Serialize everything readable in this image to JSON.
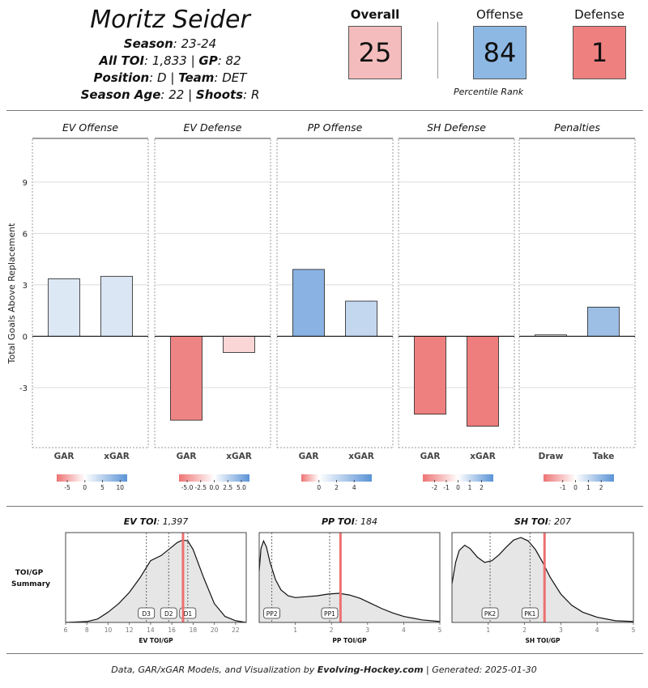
{
  "player": {
    "name": "Moritz Seider",
    "season_label": "Season",
    "season": "23-24",
    "toi_label": "All TOI",
    "toi": "1,833",
    "gp_label": "GP",
    "gp": "82",
    "position_label": "Position",
    "position": "D",
    "team_label": "Team",
    "team": "DET",
    "age_label": "Season Age",
    "age": "22",
    "shoots_label": "Shoots",
    "shoots": "R"
  },
  "ranks": {
    "overall_label": "Overall",
    "overall": "25",
    "overall_color": "#f4bcbc",
    "offense_label": "Offense",
    "offense": "84",
    "offense_color": "#8db8e3",
    "defense_label": "Defense",
    "defense": "1",
    "defense_color": "#ef8080",
    "note": "Percentile Rank"
  },
  "chart_data": [
    {
      "type": "bar",
      "title": "Total Goals Above Replacement by component",
      "ylabel": "Total Goals Above Replacement",
      "ylim": [
        -6.5,
        11.5
      ],
      "yticks": [
        9,
        6,
        3,
        0,
        -3
      ],
      "panels": [
        {
          "title": "EV Offense",
          "categories": [
            "GAR",
            "xGAR"
          ],
          "values": [
            3.35,
            3.5
          ],
          "colors": [
            "#dde8f5",
            "#dbe6f4"
          ],
          "scale": {
            "min": -8,
            "max": 12,
            "ticks": [
              -5,
              0,
              5,
              10
            ],
            "labels": [
              "-5",
              "0",
              "5",
              "10"
            ]
          }
        },
        {
          "title": "EV Defense",
          "categories": [
            "GAR",
            "xGAR"
          ],
          "values": [
            -4.9,
            -0.95
          ],
          "colors": [
            "#ef8484",
            "#fad6d6"
          ],
          "scale": {
            "min": -6.5,
            "max": 6.5,
            "ticks": [
              -5,
              -2.5,
              0,
              2.5,
              5
            ],
            "labels": [
              "-5.0",
              "-2.5",
              "0.0",
              "2.5",
              "5.0"
            ]
          }
        },
        {
          "title": "PP Offense",
          "categories": [
            "GAR",
            "xGAR"
          ],
          "values": [
            3.9,
            2.05
          ],
          "colors": [
            "#8ab2e2",
            "#c3d7ef"
          ],
          "scale": {
            "min": -2,
            "max": 6,
            "ticks": [
              0,
              2,
              4
            ],
            "labels": [
              "0",
              "2",
              "4"
            ]
          }
        },
        {
          "title": "SH Defense",
          "categories": [
            "GAR",
            "xGAR"
          ],
          "values": [
            -4.55,
            -5.25
          ],
          "colors": [
            "#ef8080",
            "#ee7d7d"
          ],
          "scale": {
            "min": -3,
            "max": 3,
            "ticks": [
              -2,
              -1,
              0,
              1,
              2
            ],
            "labels": [
              "-2",
              "-1",
              "0",
              "1",
              "2"
            ]
          }
        },
        {
          "title": "Penalties",
          "categories": [
            "Draw",
            "Take"
          ],
          "values": [
            0.08,
            1.7
          ],
          "colors": [
            "#f6f6f6",
            "#9dbfe6"
          ],
          "scale": {
            "min": -2.5,
            "max": 3,
            "ticks": [
              -1,
              0,
              1,
              2
            ],
            "labels": [
              "-1",
              "0",
              "1",
              "2"
            ]
          }
        }
      ]
    },
    {
      "type": "area",
      "row_label_1": "TOI/GP",
      "row_label_2": "Summary",
      "panels": [
        {
          "title_bold": "EV TOI",
          "title_value": "1,397",
          "xlabel": "EV TOI/GP",
          "xlim": [
            6,
            23
          ],
          "xticks": [
            6,
            8,
            10,
            12,
            14,
            16,
            18,
            20,
            22
          ],
          "xticklabels": [
            "6",
            "8",
            "10",
            "12",
            "14",
            "16",
            "18",
            "20",
            "22"
          ],
          "density_x": [
            6,
            8,
            9,
            10,
            11,
            12,
            13,
            14,
            15,
            16,
            16.5,
            17,
            17.5,
            18,
            19,
            20,
            21,
            22,
            23
          ],
          "density_y": [
            0,
            0.01,
            0.04,
            0.12,
            0.22,
            0.35,
            0.52,
            0.72,
            0.78,
            0.88,
            0.93,
            0.96,
            0.95,
            0.85,
            0.52,
            0.22,
            0.07,
            0.02,
            0
          ],
          "markers": [
            {
              "label": "D3",
              "x": 13.6
            },
            {
              "label": "D2",
              "x": 15.7
            },
            {
              "label": "D1",
              "x": 17.5
            }
          ],
          "player_value": 17.05
        },
        {
          "title_bold": "PP TOI",
          "title_value": "184",
          "xlabel": "PP TOI/GP",
          "xlim": [
            0,
            5
          ],
          "xticks": [
            1,
            2,
            3,
            4,
            5
          ],
          "xticklabels": [
            "1",
            "2",
            "3",
            "4",
            "5"
          ],
          "density_x": [
            0,
            0.05,
            0.12,
            0.2,
            0.3,
            0.45,
            0.6,
            0.8,
            1.0,
            1.3,
            1.6,
            1.9,
            2.2,
            2.5,
            2.8,
            3.1,
            3.4,
            3.7,
            4.0,
            4.5,
            5.0
          ],
          "density_y": [
            0.6,
            0.86,
            0.95,
            0.88,
            0.7,
            0.5,
            0.38,
            0.31,
            0.29,
            0.3,
            0.31,
            0.33,
            0.34,
            0.32,
            0.28,
            0.22,
            0.16,
            0.11,
            0.07,
            0.03,
            0.01
          ],
          "markers": [
            {
              "label": "PP2",
              "x": 0.35
            },
            {
              "label": "PP1",
              "x": 1.95
            }
          ],
          "player_value": 2.25
        },
        {
          "title_bold": "SH TOI",
          "title_value": "207",
          "xlabel": "SH TOI/GP",
          "xlim": [
            0,
            5
          ],
          "xticks": [
            1,
            2,
            3,
            4,
            5
          ],
          "xticklabels": [
            "1",
            "2",
            "3",
            "4",
            "5"
          ],
          "density_x": [
            0,
            0.1,
            0.2,
            0.35,
            0.5,
            0.7,
            0.9,
            1.1,
            1.3,
            1.5,
            1.7,
            1.9,
            2.1,
            2.3,
            2.5,
            2.7,
            3.0,
            3.3,
            3.6,
            4.0,
            4.5,
            5.0
          ],
          "density_y": [
            0.45,
            0.7,
            0.84,
            0.9,
            0.86,
            0.76,
            0.7,
            0.72,
            0.79,
            0.88,
            0.96,
            0.99,
            0.95,
            0.85,
            0.7,
            0.53,
            0.33,
            0.2,
            0.12,
            0.06,
            0.02,
            0.01
          ],
          "markers": [
            {
              "label": "PK2",
              "x": 1.05
            },
            {
              "label": "PK1",
              "x": 2.15
            }
          ],
          "player_value": 2.55
        }
      ]
    }
  ],
  "footer": {
    "prefix": "Data, GAR/xGAR Models, and Visualization by",
    "site": "Evolving-Hockey.com",
    "suffix": "| Generated: 2025-01-30"
  }
}
